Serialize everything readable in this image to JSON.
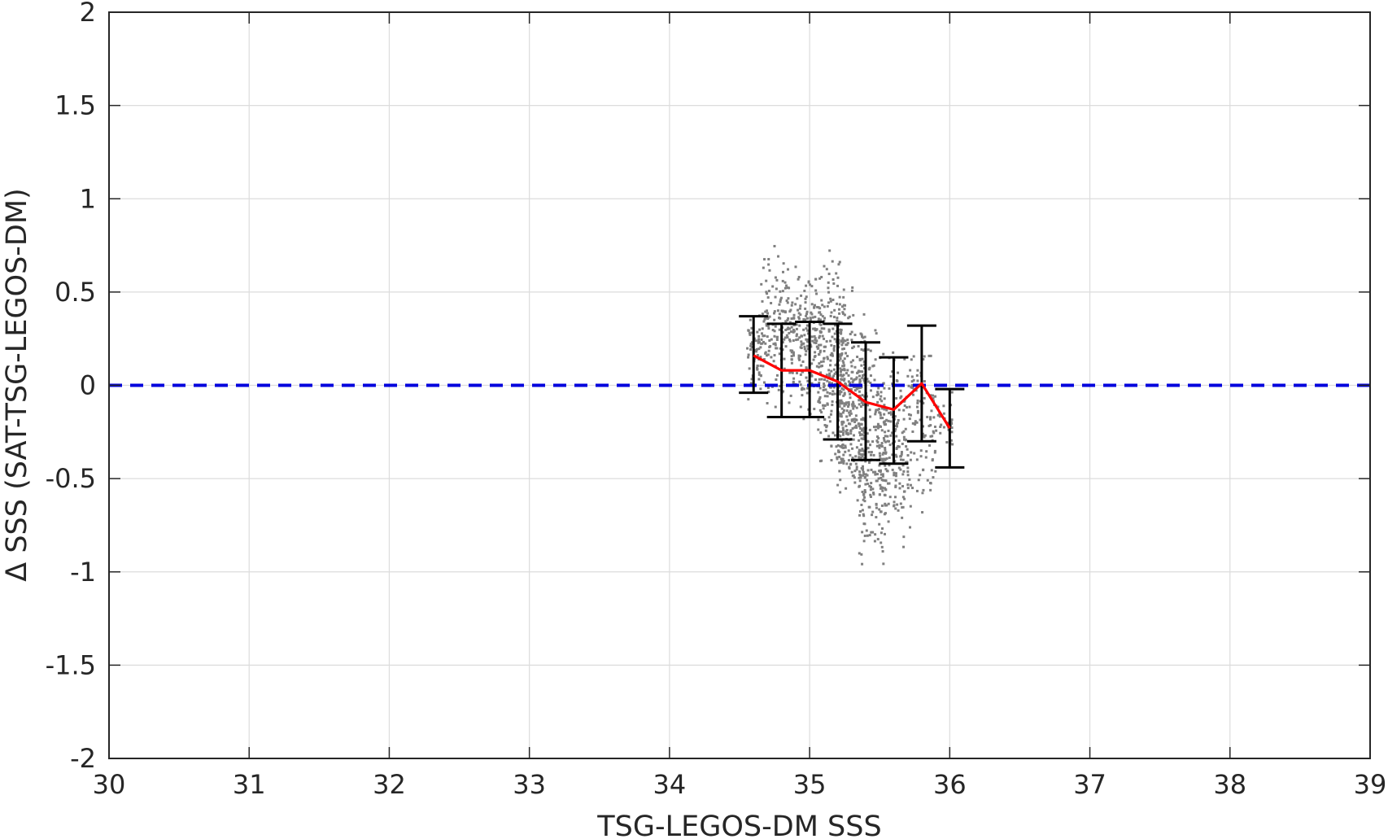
{
  "chart_data": {
    "type": "scatter",
    "title": "",
    "xlabel": "TSG-LEGOS-DM SSS",
    "ylabel": "Δ SSS (SAT-TSG-LEGOS-DM)",
    "xlim": [
      30,
      39
    ],
    "ylim": [
      -2,
      2
    ],
    "xticks": [
      "30",
      "31",
      "32",
      "33",
      "34",
      "35",
      "36",
      "37",
      "38",
      "39"
    ],
    "yticks": [
      "2",
      "1.5",
      "1",
      "0.5",
      "0",
      "-0.5",
      "-1",
      "-1.5",
      "-2"
    ],
    "grid": true,
    "legend": "none",
    "colors": {
      "scatter": "#808080",
      "mean_line": "#ff0000",
      "zero_line": "#0000dd",
      "error_bars": "#000000",
      "grid": "#dcdcdc",
      "axes": "#262626"
    },
    "zero_line": {
      "y": 0,
      "style": "dashed"
    },
    "binned_mean": {
      "x": [
        34.6,
        34.8,
        35.0,
        35.2,
        35.4,
        35.6,
        35.8,
        36.0
      ],
      "mean": [
        0.16,
        0.08,
        0.08,
        0.02,
        -0.09,
        -0.13,
        0.01,
        -0.23
      ],
      "upper": [
        0.37,
        0.33,
        0.34,
        0.33,
        0.23,
        0.15,
        0.32,
        -0.02
      ],
      "lower": [
        -0.04,
        -0.17,
        -0.17,
        -0.29,
        -0.4,
        -0.42,
        -0.3,
        -0.44
      ]
    },
    "scatter_clusters": [
      {
        "x": [
          34.55,
          34.68
        ],
        "y": [
          -0.15,
          0.45
        ],
        "n": 60
      },
      {
        "x": [
          34.65,
          34.85
        ],
        "y": [
          -0.2,
          0.85
        ],
        "n": 140
      },
      {
        "x": [
          34.85,
          35.05
        ],
        "y": [
          -0.25,
          0.75
        ],
        "n": 180
      },
      {
        "x": [
          35.05,
          35.25
        ],
        "y": [
          -0.6,
          0.82
        ],
        "n": 260
      },
      {
        "x": [
          35.2,
          35.4
        ],
        "y": [
          -0.85,
          0.62
        ],
        "n": 300
      },
      {
        "x": [
          35.35,
          35.55
        ],
        "y": [
          -1.2,
          0.5
        ],
        "n": 240
      },
      {
        "x": [
          35.5,
          35.7
        ],
        "y": [
          -0.95,
          0.3
        ],
        "n": 160
      },
      {
        "x": [
          35.7,
          35.9
        ],
        "y": [
          -0.95,
          0.5
        ],
        "n": 110
      },
      {
        "x": [
          35.9,
          36.02
        ],
        "y": [
          -0.4,
          0.0
        ],
        "n": 30
      }
    ]
  }
}
